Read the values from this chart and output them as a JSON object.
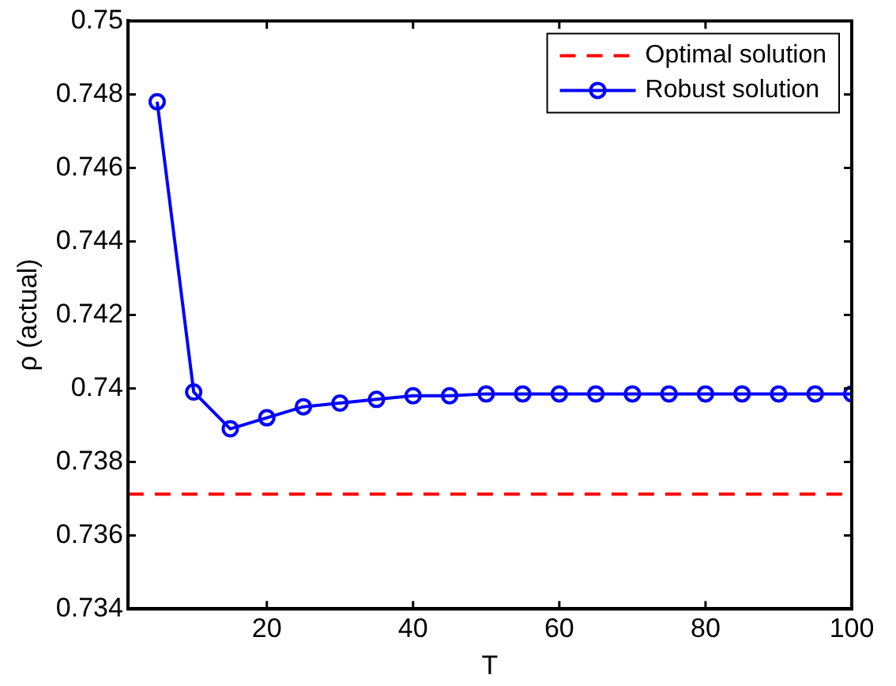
{
  "chart_data": {
    "type": "line",
    "xlabel": "T",
    "ylabel": "ρ (actual)",
    "xlim": [
      1,
      100
    ],
    "xticks": [
      20,
      40,
      60,
      80,
      100
    ],
    "ylim": [
      0.734,
      0.75
    ],
    "yticks": [
      0.734,
      0.736,
      0.738,
      0.74,
      0.742,
      0.744,
      0.746,
      0.748,
      0.75
    ],
    "grid": false,
    "legend": "top right",
    "series": [
      {
        "name": "Optimal solution",
        "color": "#ff0000",
        "line_style": "dashed",
        "marker": "none",
        "x": [
          1,
          100
        ],
        "values": [
          0.73712,
          0.73712
        ]
      },
      {
        "name": "Robust solution",
        "color": "#0000ff",
        "line_style": "solid",
        "marker": "circle",
        "x": [
          5,
          10,
          15,
          20,
          25,
          30,
          35,
          40,
          45,
          50,
          55,
          60,
          65,
          70,
          75,
          80,
          85,
          90,
          95,
          100
        ],
        "values": [
          0.7478,
          0.7399,
          0.7389,
          0.7392,
          0.7395,
          0.7396,
          0.7397,
          0.7398,
          0.7398,
          0.73985,
          0.73985,
          0.73985,
          0.73985,
          0.73985,
          0.73985,
          0.73985,
          0.73985,
          0.73985,
          0.73985,
          0.73985
        ]
      }
    ]
  }
}
